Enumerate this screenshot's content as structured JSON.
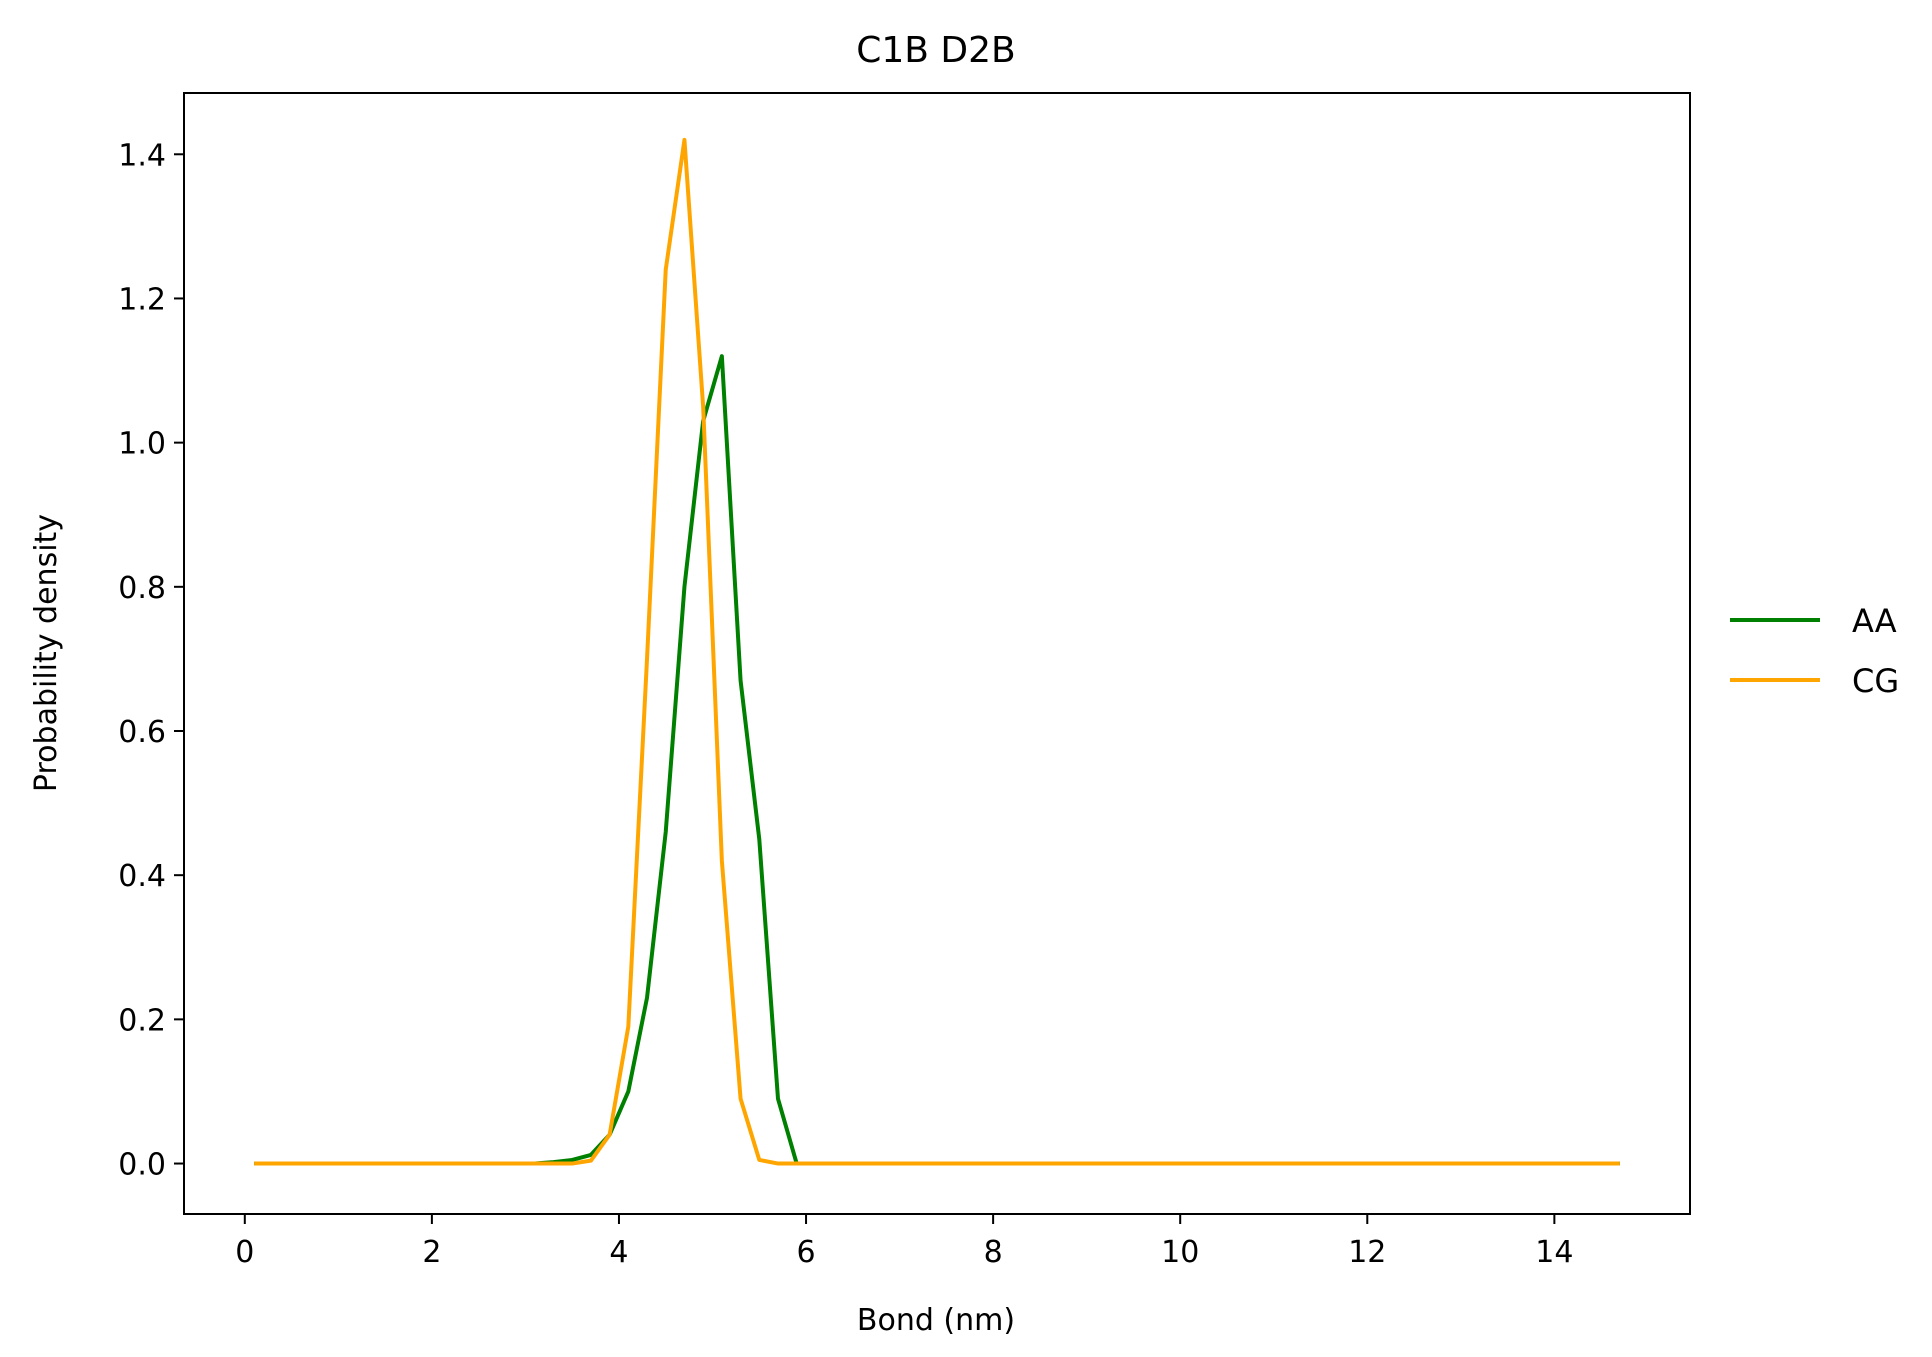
{
  "chart_data": {
    "type": "line",
    "title": "C1B D2B",
    "xlabel": "Bond (nm)",
    "ylabel": "Probability density",
    "xlim": [
      -0.65,
      15.45
    ],
    "ylim": [
      -0.07,
      1.485
    ],
    "xticks": [
      0,
      2,
      4,
      6,
      8,
      10,
      12,
      14
    ],
    "yticks": [
      0.0,
      0.2,
      0.4,
      0.6,
      0.8,
      1.0,
      1.2,
      1.4
    ],
    "grid": false,
    "legend_position": "center-right-outside",
    "x": [
      0.1,
      0.3,
      0.5,
      0.7,
      0.9,
      1.1,
      1.3,
      1.5,
      1.7,
      1.9,
      2.1,
      2.3,
      2.5,
      2.7,
      2.9,
      3.1,
      3.3,
      3.5,
      3.7,
      3.9,
      4.1,
      4.3,
      4.5,
      4.7,
      4.9,
      5.1,
      5.3,
      5.5,
      5.7,
      5.9,
      6.1,
      6.3,
      6.5,
      6.7,
      6.9,
      7.1,
      7.3,
      7.5,
      7.7,
      7.9,
      8.1,
      8.3,
      8.5,
      8.7,
      8.9,
      9.1,
      9.3,
      9.5,
      9.7,
      9.9,
      10.1,
      10.3,
      10.5,
      10.7,
      10.9,
      11.1,
      11.3,
      11.5,
      11.7,
      11.9,
      12.1,
      12.3,
      12.5,
      12.7,
      12.9,
      13.1,
      13.3,
      13.5,
      13.7,
      13.9,
      14.1,
      14.3,
      14.5,
      14.7
    ],
    "series": [
      {
        "name": "AA",
        "color": "#008000",
        "values": [
          0,
          0,
          0,
          0,
          0,
          0,
          0,
          0,
          0,
          0,
          0,
          0,
          0,
          0,
          0,
          0,
          0.002,
          0.005,
          0.012,
          0.04,
          0.1,
          0.23,
          0.46,
          0.8,
          1.03,
          1.12,
          0.67,
          0.45,
          0.09,
          0,
          0,
          0,
          0,
          0,
          0,
          0,
          0,
          0,
          0,
          0,
          0,
          0,
          0,
          0,
          0,
          0,
          0,
          0,
          0,
          0,
          0,
          0,
          0,
          0,
          0,
          0,
          0,
          0,
          0,
          0,
          0,
          0,
          0,
          0,
          0,
          0,
          0,
          0,
          0,
          0,
          0,
          0,
          0,
          0
        ]
      },
      {
        "name": "CG",
        "color": "#ffa500",
        "values": [
          0,
          0,
          0,
          0,
          0,
          0,
          0,
          0,
          0,
          0,
          0,
          0,
          0,
          0,
          0,
          0,
          0,
          0,
          0.004,
          0.04,
          0.19,
          0.7,
          1.24,
          1.42,
          1.05,
          0.42,
          0.09,
          0.005,
          0,
          0,
          0,
          0,
          0,
          0,
          0,
          0,
          0,
          0,
          0,
          0,
          0,
          0,
          0,
          0,
          0,
          0,
          0,
          0,
          0,
          0,
          0,
          0,
          0,
          0,
          0,
          0,
          0,
          0,
          0,
          0,
          0,
          0,
          0,
          0,
          0,
          0,
          0,
          0,
          0,
          0,
          0,
          0,
          0,
          0
        ]
      }
    ]
  }
}
